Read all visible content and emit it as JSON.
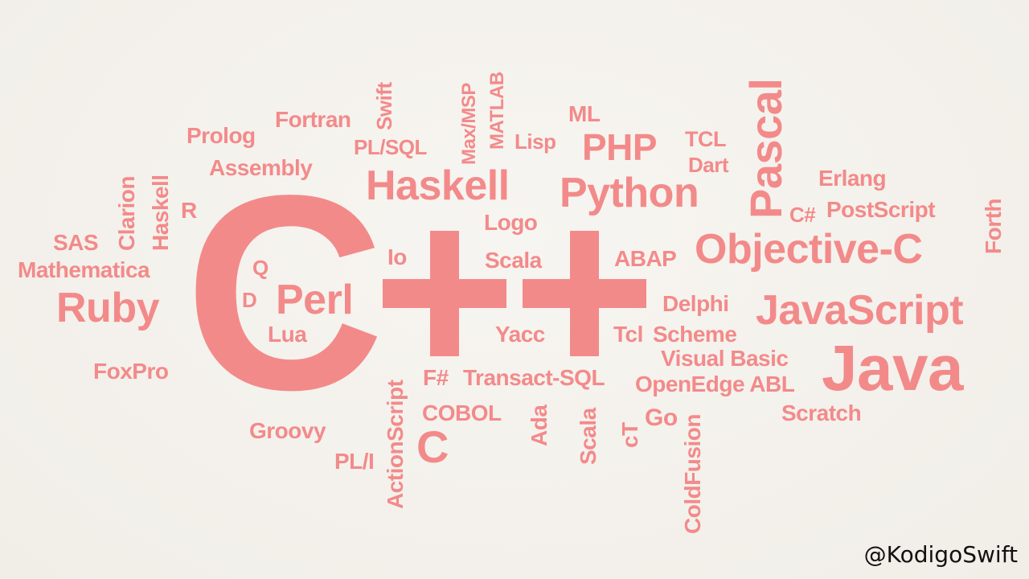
{
  "accent_color": "#f38a8a",
  "background_color": "#f4f1ec",
  "big_letter": "C",
  "words": [
    "Prolog",
    "Fortran",
    "Swift",
    "Max/MSP",
    "MATLAB",
    "PL/SQL",
    "Lisp",
    "ML",
    "PHP",
    "TCL",
    "Pascal",
    "Assembly",
    "Dart",
    "Haskell",
    "Python",
    "Erlang",
    "Clarion",
    "Haskell",
    "R",
    "C#",
    "PostScript",
    "Forth",
    "Logo",
    "SAS",
    "Objective-C",
    "Io",
    "Scala",
    "ABAP",
    "Mathematica",
    "Q",
    "Perl",
    "Ruby",
    "D",
    "Delphi",
    "JavaScript",
    "Lua",
    "Yacc",
    "Tcl",
    "Scheme",
    "Visual Basic",
    "Java",
    "FoxPro",
    "F#",
    "Transact-SQL",
    "OpenEdge ABL",
    "COBOL",
    "Scratch",
    "ActionScript",
    "Ada",
    "Scala",
    "cT",
    "Go",
    "ColdFusion",
    "Groovy",
    "C",
    "PL/I"
  ],
  "watermark": "@KodigoSwift"
}
